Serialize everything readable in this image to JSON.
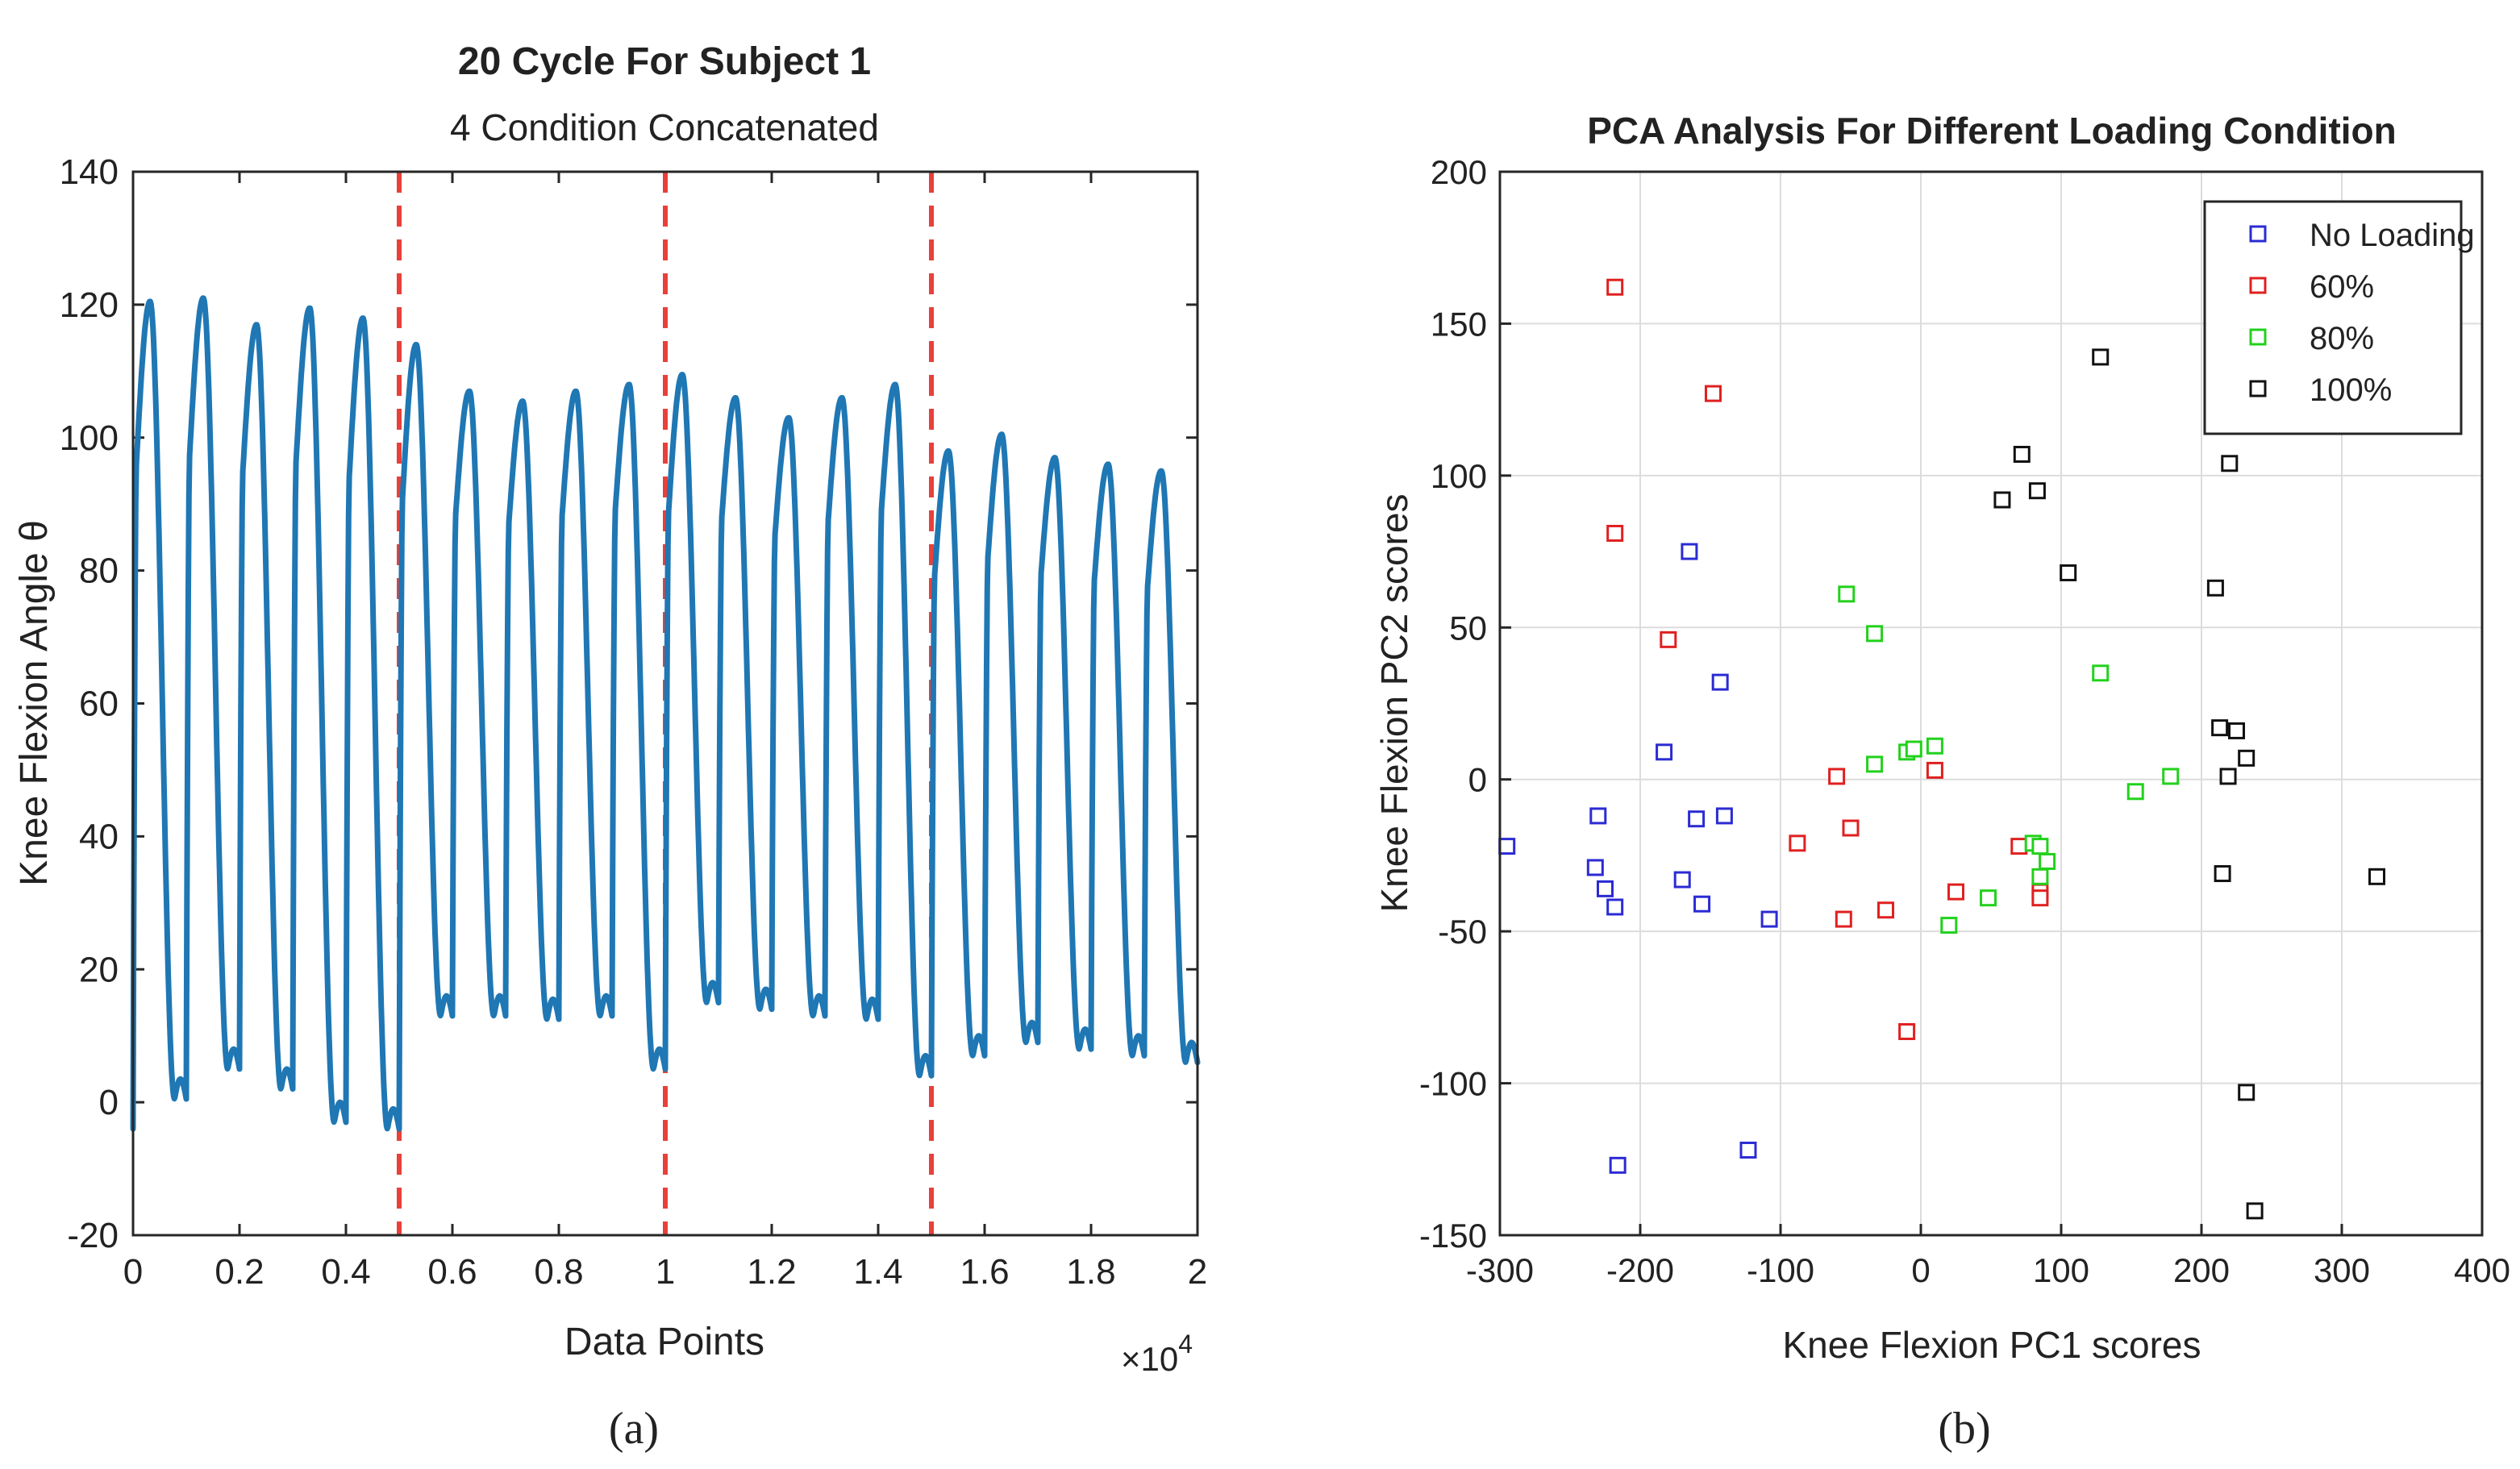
{
  "chart_data": [
    {
      "type": "line",
      "title": "20 Cycle For Subject 1",
      "subtitle": "4 Condition Concatenated",
      "xlabel": "Data Points",
      "ylabel": "Knee Flexion Angle θ",
      "x_multiplier_label": "×10",
      "x_multiplier_exponent": "4",
      "xlim": [
        0,
        2
      ],
      "ylim": [
        -20,
        140
      ],
      "x_ticks": [
        0,
        0.2,
        0.4,
        0.6,
        0.8,
        1,
        1.2,
        1.4,
        1.6,
        1.8,
        2
      ],
      "x_tick_labels": [
        "0",
        "0.2",
        "0.4",
        "0.6",
        "0.8",
        "1",
        "1.2",
        "1.4",
        "1.6",
        "1.8",
        "2"
      ],
      "y_ticks": [
        -20,
        0,
        20,
        40,
        60,
        80,
        100,
        120,
        140
      ],
      "y_tick_labels": [
        "-20",
        "0",
        "20",
        "40",
        "60",
        "80",
        "100",
        "120",
        "140"
      ],
      "grid": false,
      "condition_boundaries": [
        0.5,
        1.0,
        1.5
      ],
      "series_color": "#1f77b4",
      "boundary_color": "#e8403a",
      "cycles": [
        {
          "start": 0.0,
          "peak": 120.5,
          "min": -4
        },
        {
          "start": 0.1,
          "peak": 121,
          "min": 0.5
        },
        {
          "start": 0.2,
          "peak": 117,
          "min": 5
        },
        {
          "start": 0.3,
          "peak": 119.5,
          "min": 2
        },
        {
          "start": 0.4,
          "peak": 118,
          "min": -3
        },
        {
          "start": 0.5,
          "peak": 114,
          "min": -4
        },
        {
          "start": 0.6,
          "peak": 107,
          "min": 13
        },
        {
          "start": 0.7,
          "peak": 105.5,
          "min": 13
        },
        {
          "start": 0.8,
          "peak": 107,
          "min": 12.5
        },
        {
          "start": 0.9,
          "peak": 108,
          "min": 13
        },
        {
          "start": 1.0,
          "peak": 109.5,
          "min": 5
        },
        {
          "start": 1.1,
          "peak": 106,
          "min": 15
        },
        {
          "start": 1.2,
          "peak": 103,
          "min": 14
        },
        {
          "start": 1.3,
          "peak": 106,
          "min": 13
        },
        {
          "start": 1.4,
          "peak": 108,
          "min": 12.5
        },
        {
          "start": 1.5,
          "peak": 98,
          "min": 4
        },
        {
          "start": 1.6,
          "peak": 100.5,
          "min": 7
        },
        {
          "start": 1.7,
          "peak": 97,
          "min": 9
        },
        {
          "start": 1.8,
          "peak": 96,
          "min": 8
        },
        {
          "start": 1.9,
          "peak": 95,
          "min": 7
        }
      ],
      "end_value": 6,
      "caption": "(a)"
    },
    {
      "type": "scatter",
      "title": "PCA Analysis For Different Loading Condition",
      "xlabel": "Knee Flexion PC1 scores",
      "ylabel": "Knee Flexion PC2 scores",
      "xlim": [
        -300,
        400
      ],
      "ylim": [
        -150,
        200
      ],
      "x_ticks": [
        -300,
        -200,
        -100,
        0,
        100,
        200,
        300,
        400
      ],
      "x_tick_labels": [
        "-300",
        "-200",
        "-100",
        "0",
        "100",
        "200",
        "300",
        "400"
      ],
      "y_ticks": [
        -150,
        -100,
        -50,
        0,
        50,
        100,
        150,
        200
      ],
      "y_tick_labels": [
        "-150",
        "-100",
        "-50",
        "0",
        "50",
        "100",
        "150",
        "200"
      ],
      "grid": true,
      "legend_position": "top-right",
      "series": [
        {
          "name": "No Loading",
          "color": "#2b2bd4",
          "points": [
            [
              -295,
              -22
            ],
            [
              -230,
              -12
            ],
            [
              -232,
              -29
            ],
            [
              -225,
              -36
            ],
            [
              -218,
              -42
            ],
            [
              -216,
              -127
            ],
            [
              -183,
              9
            ],
            [
              -170,
              -33
            ],
            [
              -165,
              75
            ],
            [
              -160,
              -13
            ],
            [
              -156,
              -41
            ],
            [
              -143,
              32
            ],
            [
              -140,
              -12
            ],
            [
              -123,
              -122
            ],
            [
              -108,
              -46
            ]
          ]
        },
        {
          "name": "60%",
          "color": "#e02020",
          "points": [
            [
              -218,
              162
            ],
            [
              -218,
              81
            ],
            [
              -180,
              46
            ],
            [
              -148,
              127
            ],
            [
              -88,
              -21
            ],
            [
              -60,
              1
            ],
            [
              -55,
              -46
            ],
            [
              -50,
              -16
            ],
            [
              -25,
              -43
            ],
            [
              -10,
              -83
            ],
            [
              10,
              3
            ],
            [
              25,
              -37
            ],
            [
              70,
              -22
            ],
            [
              85,
              -37
            ],
            [
              85,
              -39
            ]
          ]
        },
        {
          "name": "80%",
          "color": "#22d11c",
          "points": [
            [
              -53,
              61
            ],
            [
              -33,
              48
            ],
            [
              -33,
              5
            ],
            [
              -10,
              9
            ],
            [
              -5,
              10
            ],
            [
              10,
              11
            ],
            [
              20,
              -48
            ],
            [
              48,
              -39
            ],
            [
              80,
              -21
            ],
            [
              85,
              -22
            ],
            [
              85,
              -32
            ],
            [
              90,
              -27
            ],
            [
              128,
              35
            ],
            [
              153,
              -4
            ],
            [
              178,
              1
            ]
          ]
        },
        {
          "name": "100%",
          "color": "#111111",
          "points": [
            [
              58,
              92
            ],
            [
              72,
              107
            ],
            [
              83,
              95
            ],
            [
              105,
              68
            ],
            [
              128,
              139
            ],
            [
              210,
              63
            ],
            [
              213,
              17
            ],
            [
              215,
              -31
            ],
            [
              219,
              1
            ],
            [
              220,
              104
            ],
            [
              225,
              16
            ],
            [
              232,
              7
            ],
            [
              232,
              -103
            ],
            [
              238,
              -142
            ],
            [
              325,
              -32
            ]
          ]
        }
      ],
      "caption": "(b)"
    }
  ]
}
